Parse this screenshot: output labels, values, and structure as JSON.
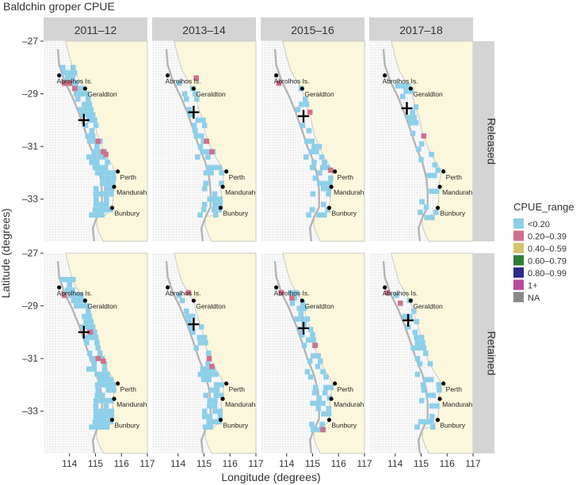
{
  "chart_data": {
    "type": "heatmap",
    "title": "Baldchin groper CPUE",
    "xlabel": "Longitude (degrees)",
    "ylabel": "Latitude (degrees)",
    "xlim": [
      113,
      117
    ],
    "ylim": [
      -34.6,
      -27
    ],
    "x_ticks": [
      114,
      115,
      116,
      117
    ],
    "x_tick_labels": [
      "114",
      "115",
      "116",
      "117"
    ],
    "y_ticks": [
      -27,
      -29,
      -31,
      -33
    ],
    "y_tick_labels": [
      "–27",
      "–29",
      "–31",
      "–33"
    ],
    "column_facets": [
      "2011–12",
      "2013–14",
      "2015–16",
      "2017–18"
    ],
    "row_facets": [
      "Released",
      "Retained"
    ],
    "legend": {
      "title": "CPUE_range",
      "position": "right",
      "entries": [
        {
          "label": "<0.20",
          "color": "#8dcfe8"
        },
        {
          "label": "0.20–0.39",
          "color": "#d0708a"
        },
        {
          "label": "0.40–0.59",
          "color": "#d3c46a"
        },
        {
          "label": "0.60–0.79",
          "color": "#2e7d3a"
        },
        {
          "label": "0.80–0.99",
          "color": "#2b2b8a"
        },
        {
          "label": "1+",
          "color": "#b54a9a"
        },
        {
          "label": "NA",
          "color": "#8a8a8a"
        }
      ]
    },
    "places": [
      {
        "name": "Abrolhos Is.",
        "lon": 113.6,
        "lat": -28.3
      },
      {
        "name": "Geraldton",
        "lon": 114.6,
        "lat": -28.8
      },
      {
        "name": "Perth",
        "lon": 115.86,
        "lat": -31.95
      },
      {
        "name": "Mandurah",
        "lon": 115.72,
        "lat": -32.53
      },
      {
        "name": "Bunbury",
        "lon": 115.64,
        "lat": -33.33
      }
    ],
    "colors": {
      "land": "#fbf7dc",
      "sea_grid": "#e6e6e6",
      "panel_bg": "#efefef",
      "strip": "#d4d4d4"
    }
  }
}
